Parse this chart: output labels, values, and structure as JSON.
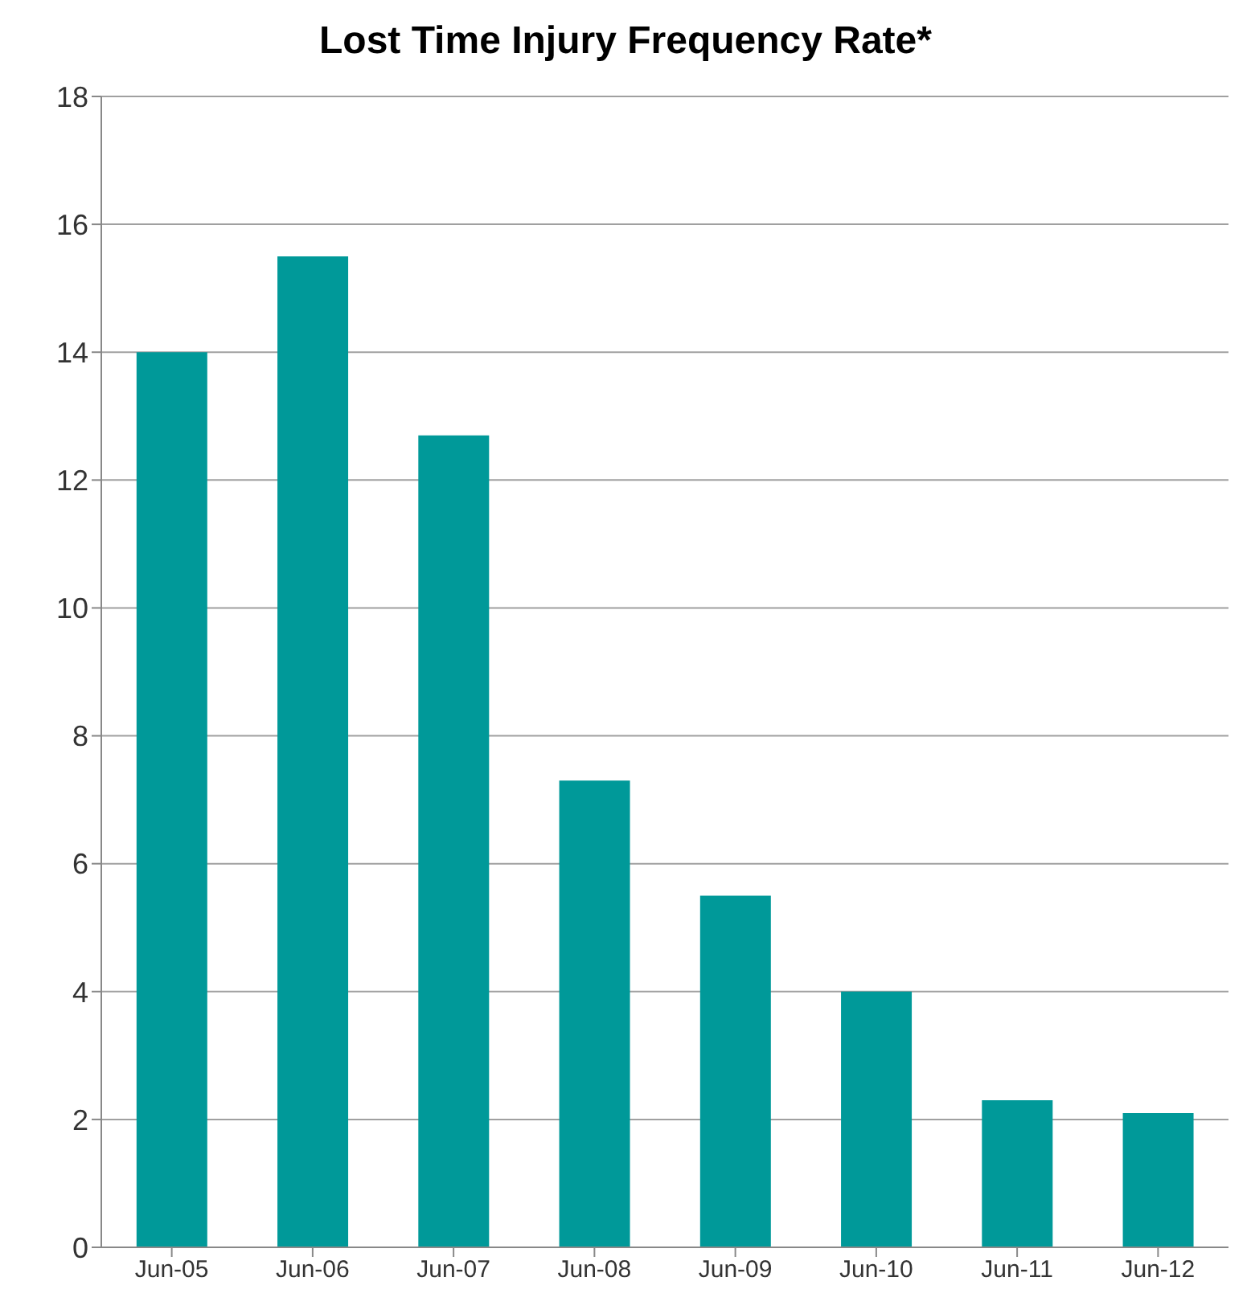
{
  "chart_data": {
    "type": "bar",
    "title": "Lost Time Injury Frequency Rate*",
    "categories": [
      "Jun-05",
      "Jun-06",
      "Jun-07",
      "Jun-08",
      "Jun-09",
      "Jun-10",
      "Jun-11",
      "Jun-12"
    ],
    "values": [
      14.0,
      15.5,
      12.7,
      7.3,
      5.5,
      4.0,
      2.3,
      2.1
    ],
    "color": "#009999",
    "ylim": [
      0,
      18
    ],
    "yticks": [
      0,
      2,
      4,
      6,
      8,
      10,
      12,
      14,
      16,
      18
    ],
    "grid": "y"
  }
}
